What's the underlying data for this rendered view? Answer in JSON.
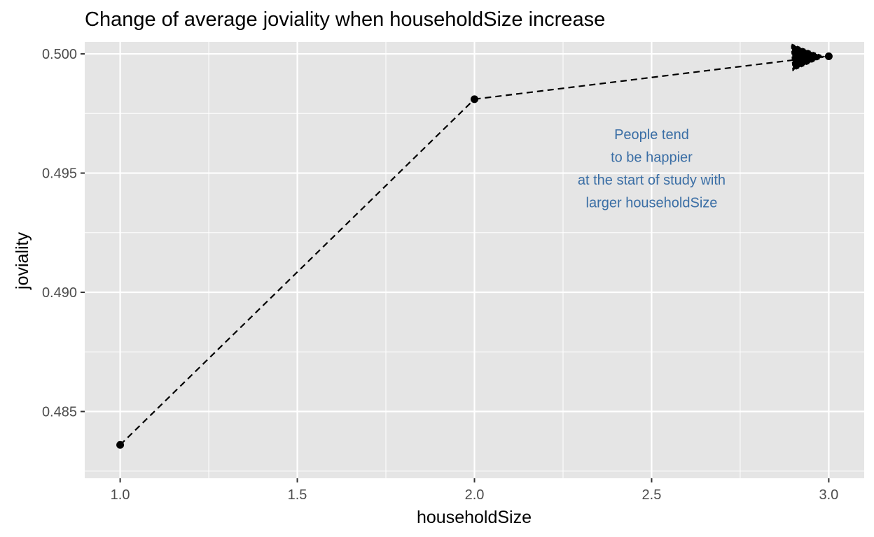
{
  "chart_data": {
    "type": "line",
    "title": "Change of average joviality when householdSize increase",
    "xlabel": "householdSize",
    "ylabel": "joviality",
    "x": [
      1,
      2,
      3
    ],
    "y": [
      0.4836,
      0.4981,
      0.4999
    ],
    "xlim": [
      0.9,
      3.1
    ],
    "ylim": [
      0.4822,
      0.5005
    ],
    "x_ticks": [
      1.0,
      1.5,
      2.0,
      2.5,
      3.0
    ],
    "x_tick_labels": [
      "1.0",
      "1.5",
      "2.0",
      "2.5",
      "3.0"
    ],
    "y_ticks": [
      0.485,
      0.49,
      0.495,
      0.5
    ],
    "y_tick_labels": [
      "0.485",
      "0.490",
      "0.495",
      "0.500"
    ],
    "line_style": "dashed",
    "arrow_at_end": true,
    "grid": true,
    "annotation": {
      "lines": [
        "People tend",
        "to be happier",
        "at the start of study with",
        "larger householdSize"
      ],
      "x": 2.5,
      "y": 0.4952,
      "color": "#3a6ea5"
    },
    "colors": {
      "panel_background": "#e5e5e5",
      "grid": "#ffffff",
      "line": "#000000"
    }
  }
}
